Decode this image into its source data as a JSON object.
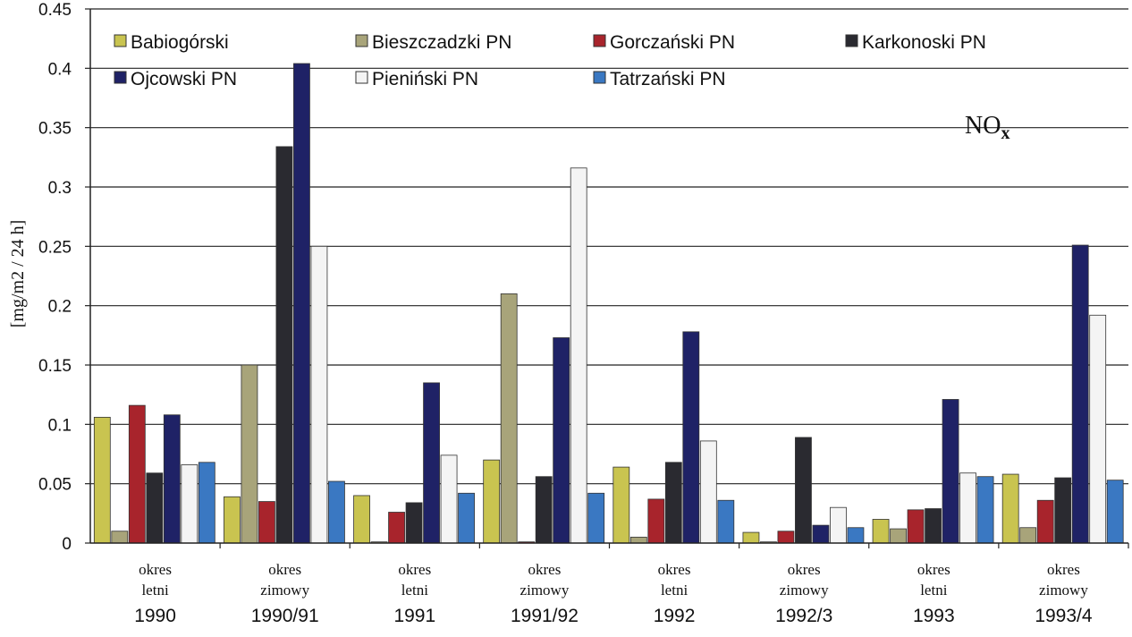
{
  "chart_data": {
    "type": "bar",
    "ylabel": "[mg/m2 / 24 h]",
    "annotation": "NO",
    "annotation_sub": "x",
    "ylim": [
      0,
      0.45
    ],
    "yticks": [
      "0",
      "0.05",
      "0.1",
      "0.15",
      "0.2",
      "0.25",
      "0.3",
      "0.35",
      "0.4",
      "0.45"
    ],
    "grid": true,
    "legend_position": "top",
    "categories": [
      {
        "line1": "okres",
        "line2": "letni",
        "year": "1990"
      },
      {
        "line1": "okres",
        "line2": "zimowy",
        "year": "1990/91"
      },
      {
        "line1": "okres",
        "line2": "letni",
        "year": "1991"
      },
      {
        "line1": "okres",
        "line2": "zimowy",
        "year": "1991/92"
      },
      {
        "line1": "okres",
        "line2": "letni",
        "year": "1992"
      },
      {
        "line1": "okres",
        "line2": "zimowy",
        "year": "1992/3"
      },
      {
        "line1": "okres",
        "line2": "letni",
        "year": "1993"
      },
      {
        "line1": "okres",
        "line2": "zimowy",
        "year": "1993/4"
      }
    ],
    "series": [
      {
        "name": "Babiogórski",
        "color": "#c9c450",
        "values": [
          0.106,
          0.039,
          0.04,
          0.07,
          0.064,
          0.009,
          0.02,
          0.058
        ]
      },
      {
        "name": "Bieszczadzki PN",
        "color": "#a8a47a",
        "values": [
          0.01,
          0.15,
          0.001,
          0.21,
          0.005,
          0.001,
          0.012,
          0.013
        ]
      },
      {
        "name": "Gorczański PN",
        "color": "#a8242c",
        "values": [
          0.116,
          0.035,
          0.026,
          0.001,
          0.037,
          0.01,
          0.028,
          0.036
        ]
      },
      {
        "name": "Karkonoski PN",
        "color": "#2a2a30",
        "values": [
          0.059,
          0.334,
          0.034,
          0.056,
          0.068,
          0.089,
          0.029,
          0.055
        ]
      },
      {
        "name": "Ojcowski PN",
        "color": "#1f2266",
        "values": [
          0.108,
          0.404,
          0.135,
          0.173,
          0.178,
          0.015,
          0.121,
          0.251
        ]
      },
      {
        "name": "Pieniński PN",
        "color": "#f4f4f4",
        "values": [
          0.066,
          0.25,
          0.074,
          0.316,
          0.086,
          0.03,
          0.059,
          0.192
        ]
      },
      {
        "name": "Tatrzański PN",
        "color": "#3a78c2",
        "values": [
          0.068,
          0.052,
          0.042,
          0.042,
          0.036,
          0.013,
          0.056,
          0.053
        ]
      }
    ]
  }
}
